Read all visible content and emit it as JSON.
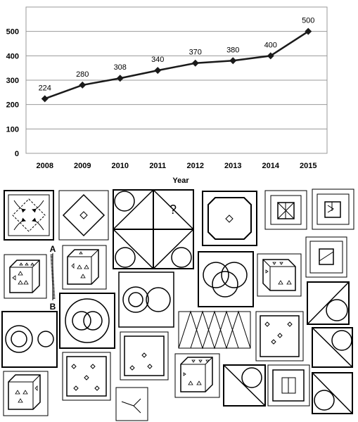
{
  "chart_data": {
    "type": "line",
    "x": [
      "2008",
      "2009",
      "2010",
      "2011",
      "2012",
      "2013",
      "2014",
      "2015"
    ],
    "values": [
      224,
      280,
      308,
      340,
      370,
      380,
      400,
      500
    ],
    "data_labels": [
      "224",
      "280",
      "308",
      "340",
      "370",
      "380",
      "400",
      "500"
    ],
    "y_ticks": [
      "0",
      "100",
      "200",
      "300",
      "400",
      "500"
    ],
    "xlabel": "Year",
    "ylabel": "",
    "ylim": [
      0,
      600
    ],
    "grid": "horizontal",
    "line_color": "#1a1a1a",
    "marker": "diamond"
  },
  "puzzle": {
    "question_mark": "?",
    "ruler_top_label": "A",
    "ruler_bottom_label": "B"
  }
}
